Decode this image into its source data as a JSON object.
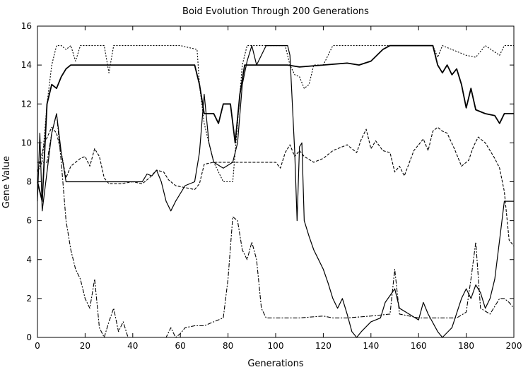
{
  "chart_data": {
    "type": "line",
    "title": "Boid Evolution Through 200 Generations",
    "xlabel": "Generations",
    "ylabel": "Gene Value",
    "xlim": [
      0,
      200
    ],
    "ylim": [
      0,
      16
    ],
    "x_ticks": [
      0,
      20,
      40,
      60,
      80,
      100,
      120,
      140,
      160,
      180,
      200
    ],
    "y_ticks": [
      0,
      2,
      4,
      6,
      8,
      10,
      12,
      14,
      16
    ],
    "grid": false,
    "legend": "none",
    "series": [
      {
        "style": "solid-thick",
        "points": [
          [
            0,
            8
          ],
          [
            2,
            7
          ],
          [
            4,
            12
          ],
          [
            6,
            13
          ],
          [
            8,
            12.8
          ],
          [
            10,
            13.4
          ],
          [
            12,
            13.8
          ],
          [
            14,
            14
          ],
          [
            20,
            14
          ],
          [
            22,
            14
          ],
          [
            25,
            14
          ],
          [
            40,
            14
          ],
          [
            55,
            14
          ],
          [
            66,
            14
          ],
          [
            68,
            13
          ],
          [
            70,
            11.5
          ],
          [
            74,
            11.5
          ],
          [
            76,
            11
          ],
          [
            78,
            12
          ],
          [
            81,
            12
          ],
          [
            83,
            10
          ],
          [
            85,
            12.5
          ],
          [
            87,
            14
          ],
          [
            90,
            14
          ],
          [
            100,
            14
          ],
          [
            105,
            14
          ],
          [
            110,
            13.9
          ],
          [
            120,
            14
          ],
          [
            130,
            14.1
          ],
          [
            135,
            14
          ],
          [
            140,
            14.2
          ],
          [
            145,
            14.8
          ],
          [
            148,
            15
          ],
          [
            160,
            15
          ],
          [
            166,
            15
          ],
          [
            168,
            14
          ],
          [
            170,
            13.6
          ],
          [
            172,
            14
          ],
          [
            174,
            13.5
          ],
          [
            176,
            13.8
          ],
          [
            178,
            13
          ],
          [
            180,
            11.8
          ],
          [
            182,
            12.8
          ],
          [
            184,
            11.7
          ],
          [
            188,
            11.5
          ],
          [
            192,
            11.4
          ],
          [
            194,
            11
          ],
          [
            196,
            11.5
          ],
          [
            200,
            11.5
          ]
        ]
      },
      {
        "style": "dotted",
        "points": [
          [
            0,
            8.5
          ],
          [
            2,
            9
          ],
          [
            4,
            12
          ],
          [
            6,
            14
          ],
          [
            8,
            15
          ],
          [
            10,
            15
          ],
          [
            12,
            14.8
          ],
          [
            14,
            15
          ],
          [
            16,
            14.2
          ],
          [
            18,
            15
          ],
          [
            20,
            15
          ],
          [
            25,
            15
          ],
          [
            28,
            15
          ],
          [
            30,
            13.6
          ],
          [
            32,
            15
          ],
          [
            40,
            15
          ],
          [
            60,
            15
          ],
          [
            67,
            14.8
          ],
          [
            68,
            13
          ],
          [
            70,
            11
          ],
          [
            72,
            10
          ],
          [
            74,
            9
          ],
          [
            78,
            8
          ],
          [
            82,
            8
          ],
          [
            86,
            14
          ],
          [
            88,
            15
          ],
          [
            90,
            15
          ],
          [
            100,
            15
          ],
          [
            104,
            15
          ],
          [
            106,
            14
          ],
          [
            108,
            13.5
          ],
          [
            110,
            13.4
          ],
          [
            112,
            12.8
          ],
          [
            114,
            13
          ],
          [
            116,
            14
          ],
          [
            120,
            14
          ],
          [
            124,
            15
          ],
          [
            140,
            15
          ],
          [
            150,
            15
          ],
          [
            166,
            15
          ],
          [
            168,
            14.4
          ],
          [
            170,
            15
          ],
          [
            174,
            14.8
          ],
          [
            180,
            14.5
          ],
          [
            184,
            14.4
          ],
          [
            188,
            15
          ],
          [
            194,
            14.5
          ],
          [
            196,
            15
          ],
          [
            200,
            15
          ]
        ]
      },
      {
        "style": "dashed",
        "points": [
          [
            0,
            8.5
          ],
          [
            3,
            10
          ],
          [
            6,
            10.8
          ],
          [
            8,
            10.5
          ],
          [
            10,
            9.5
          ],
          [
            12,
            8.2
          ],
          [
            14,
            8.8
          ],
          [
            16,
            9
          ],
          [
            18,
            9.2
          ],
          [
            20,
            9.3
          ],
          [
            22,
            8.8
          ],
          [
            24,
            9.7
          ],
          [
            26,
            9.3
          ],
          [
            28,
            8.2
          ],
          [
            30,
            7.9
          ],
          [
            35,
            7.9
          ],
          [
            40,
            8
          ],
          [
            44,
            7.9
          ],
          [
            47,
            8.2
          ],
          [
            50,
            8.6
          ],
          [
            53,
            8.5
          ],
          [
            55,
            8.1
          ],
          [
            58,
            7.8
          ],
          [
            62,
            7.7
          ],
          [
            66,
            7.6
          ],
          [
            68,
            7.9
          ],
          [
            70,
            8.9
          ],
          [
            74,
            9
          ],
          [
            80,
            9
          ],
          [
            88,
            9
          ],
          [
            100,
            9
          ],
          [
            102,
            8.7
          ],
          [
            104,
            9.5
          ],
          [
            106,
            9.9
          ],
          [
            108,
            9.3
          ],
          [
            110,
            9.6
          ],
          [
            112,
            9.3
          ],
          [
            116,
            9
          ],
          [
            120,
            9.2
          ],
          [
            124,
            9.6
          ],
          [
            130,
            9.9
          ],
          [
            134,
            9.5
          ],
          [
            136,
            10.2
          ],
          [
            138,
            10.7
          ],
          [
            140,
            9.7
          ],
          [
            142,
            10.1
          ],
          [
            145,
            9.6
          ],
          [
            148,
            9.5
          ],
          [
            150,
            8.5
          ],
          [
            152,
            8.8
          ],
          [
            154,
            8.3
          ],
          [
            158,
            9.6
          ],
          [
            162,
            10.2
          ],
          [
            164,
            9.6
          ],
          [
            166,
            10.6
          ],
          [
            168,
            10.8
          ],
          [
            170,
            10.6
          ],
          [
            172,
            10.5
          ],
          [
            175,
            9.7
          ],
          [
            178,
            8.8
          ],
          [
            181,
            9.1
          ],
          [
            183,
            9.8
          ],
          [
            185,
            10.3
          ],
          [
            188,
            10
          ],
          [
            190,
            9.6
          ],
          [
            192,
            9.2
          ],
          [
            194,
            8.7
          ],
          [
            196,
            7.5
          ],
          [
            198,
            5
          ],
          [
            200,
            4.7
          ]
        ]
      },
      {
        "style": "solid-thin",
        "points": [
          [
            0,
            7
          ],
          [
            1,
            10.5
          ],
          [
            2,
            6.5
          ],
          [
            4,
            8.5
          ],
          [
            6,
            10.5
          ],
          [
            8,
            11.5
          ],
          [
            10,
            9.5
          ],
          [
            12,
            8
          ],
          [
            20,
            8
          ],
          [
            40,
            8
          ],
          [
            44,
            8
          ],
          [
            46,
            8.4
          ],
          [
            48,
            8.3
          ],
          [
            50,
            8.6
          ],
          [
            52,
            8
          ],
          [
            54,
            7
          ],
          [
            56,
            6.5
          ],
          [
            58,
            7
          ],
          [
            62,
            7.8
          ],
          [
            66,
            8
          ],
          [
            68,
            9.5
          ],
          [
            70,
            12.5
          ],
          [
            72,
            10
          ],
          [
            74,
            9
          ],
          [
            78,
            8.7
          ],
          [
            82,
            9
          ],
          [
            84,
            10
          ],
          [
            86,
            13
          ],
          [
            88,
            14.2
          ],
          [
            90,
            15
          ],
          [
            92,
            14
          ],
          [
            96,
            15
          ],
          [
            100,
            15
          ],
          [
            105,
            15
          ],
          [
            106,
            14.5
          ],
          [
            108,
            9.5
          ],
          [
            109,
            6
          ],
          [
            110,
            9.8
          ],
          [
            111,
            10
          ],
          [
            112,
            6
          ],
          [
            114,
            5.2
          ],
          [
            116,
            4.5
          ],
          [
            118,
            4
          ],
          [
            120,
            3.5
          ],
          [
            122,
            2.8
          ],
          [
            124,
            2
          ],
          [
            126,
            1.5
          ],
          [
            128,
            2
          ],
          [
            130,
            1.2
          ],
          [
            132,
            0.3
          ],
          [
            134,
            0
          ],
          [
            136,
            0.3
          ],
          [
            140,
            0.8
          ],
          [
            144,
            1
          ],
          [
            146,
            1.8
          ],
          [
            150,
            2.5
          ],
          [
            152,
            1.5
          ],
          [
            156,
            1.2
          ],
          [
            160,
            0.9
          ],
          [
            162,
            1.8
          ],
          [
            164,
            1.2
          ],
          [
            168,
            0.3
          ],
          [
            170,
            0
          ],
          [
            174,
            0.5
          ],
          [
            178,
            2
          ],
          [
            180,
            2.5
          ],
          [
            182,
            2
          ],
          [
            184,
            2.7
          ],
          [
            186,
            2.3
          ],
          [
            188,
            1.5
          ],
          [
            190,
            2
          ],
          [
            192,
            3
          ],
          [
            194,
            5
          ],
          [
            196,
            7
          ],
          [
            200,
            7
          ]
        ]
      },
      {
        "style": "dash-dot",
        "points": [
          [
            0,
            9
          ],
          [
            4,
            9
          ],
          [
            6,
            10.5
          ],
          [
            8,
            11.5
          ],
          [
            10,
            9
          ],
          [
            12,
            6
          ],
          [
            14,
            4.5
          ],
          [
            16,
            3.5
          ],
          [
            18,
            3
          ],
          [
            20,
            2
          ],
          [
            22,
            1.5
          ],
          [
            24,
            3
          ],
          [
            26,
            0.5
          ],
          [
            28,
            0
          ],
          [
            30,
            0.8
          ],
          [
            32,
            1.5
          ],
          [
            34,
            0.3
          ],
          [
            36,
            0.8
          ],
          [
            38,
            0
          ],
          [
            50,
            0
          ],
          [
            54,
            0
          ],
          [
            56,
            0.5
          ],
          [
            58,
            0
          ],
          [
            60,
            0.2
          ],
          [
            62,
            0.5
          ],
          [
            66,
            0.6
          ],
          [
            70,
            0.6
          ],
          [
            74,
            0.8
          ],
          [
            78,
            1
          ],
          [
            80,
            3
          ],
          [
            82,
            6.2
          ],
          [
            84,
            6
          ],
          [
            86,
            4.5
          ],
          [
            88,
            4
          ],
          [
            90,
            4.9
          ],
          [
            92,
            4
          ],
          [
            94,
            1.5
          ],
          [
            96,
            1
          ],
          [
            110,
            1
          ],
          [
            120,
            1.1
          ],
          [
            124,
            1
          ],
          [
            130,
            1
          ],
          [
            140,
            1.1
          ],
          [
            148,
            1.2
          ],
          [
            150,
            3.5
          ],
          [
            152,
            1.2
          ],
          [
            160,
            1
          ],
          [
            176,
            1
          ],
          [
            180,
            1.3
          ],
          [
            182,
            3
          ],
          [
            184,
            4.9
          ],
          [
            186,
            1.5
          ],
          [
            190,
            1.2
          ],
          [
            194,
            2
          ],
          [
            196,
            2
          ],
          [
            198,
            1.8
          ],
          [
            200,
            1.5
          ]
        ]
      }
    ]
  }
}
